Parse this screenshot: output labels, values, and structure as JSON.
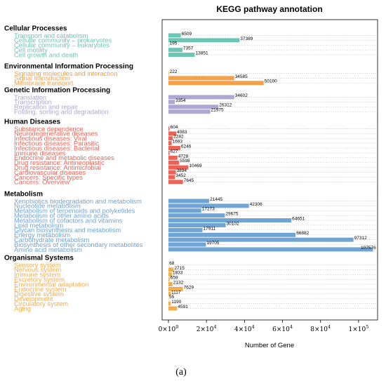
{
  "chart_data": {
    "type": "bar",
    "orientation": "horizontal",
    "title": "KEGG pathway annotation",
    "xlabel": "Number of Gene",
    "ylabel": "",
    "xlim": [
      0,
      110000
    ],
    "x_ticks": [
      {
        "value": 0,
        "mant": "0",
        "exp": "0"
      },
      {
        "value": 20000,
        "mant": "2",
        "exp": "4"
      },
      {
        "value": 40000,
        "mant": "4",
        "exp": "4"
      },
      {
        "value": 60000,
        "mant": "6",
        "exp": "4"
      },
      {
        "value": 80000,
        "mant": "8",
        "exp": "4"
      },
      {
        "value": 100000,
        "mant": "1",
        "exp": "5"
      }
    ],
    "grid": "dotted horizontal",
    "panel_label": "(a)",
    "groups": [
      {
        "name": "Cellular Processes",
        "color": "#6cc6b3",
        "items": [
          {
            "label": "Transport and catabolism",
            "value": 6509
          },
          {
            "label": "Cellular community – prokaryotes",
            "value": 37389
          },
          {
            "label": "Cellular community – eukaryotes",
            "value": 195
          },
          {
            "label": "Cell motility",
            "value": 7357
          },
          {
            "label": "Cell growth and death",
            "value": 13851
          }
        ]
      },
      {
        "name": "Environmental Information Processing",
        "color": "#f5a047",
        "items": [
          {
            "label": "Signaling molecules and interaction",
            "value": 222
          },
          {
            "label": "Signal transduction",
            "value": 34585
          },
          {
            "label": "Membrane transport",
            "value": 50100
          }
        ]
      },
      {
        "name": "Genetic Information Processing",
        "color": "#ada7d4",
        "items": [
          {
            "label": "Translation",
            "value": 34602
          },
          {
            "label": "Transcription",
            "value": 3354
          },
          {
            "label": "Replication and repair",
            "value": 26312
          },
          {
            "label": "Folding, sorting and degradation",
            "value": 21975
          }
        ]
      },
      {
        "name": "Human Diseases",
        "color": "#ec6355",
        "items": [
          {
            "label": "Substance dependence",
            "value": 604
          },
          {
            "label": "Neurodegenerative diseases",
            "value": 4083
          },
          {
            "label": "Infectious diseases: Viral",
            "value": 2282
          },
          {
            "label": "Infectious diseases: Parasitic",
            "value": 1693
          },
          {
            "label": "Infectious diseases: Bacterial",
            "value": 6246
          },
          {
            "label": "Immune diseases",
            "value": 627
          },
          {
            "label": "Endocrine and metabolic diseases",
            "value": 4728
          },
          {
            "label": "Drug resistance: Antineoplastic",
            "value": 5598
          },
          {
            "label": "Drug resistance: Antimicrobial",
            "value": 10469
          },
          {
            "label": "Cardiovascular diseases",
            "value": 3894
          },
          {
            "label": "Cancers: Specific types",
            "value": 3452
          },
          {
            "label": "Cancers: Overview",
            "value": 7645
          }
        ]
      },
      {
        "name": "Metabolism",
        "color": "#6fa4d4",
        "items": [
          {
            "label": "Xenobiotics biodegradation and metabolism",
            "value": 21445
          },
          {
            "label": "Nucleotide metabolism",
            "value": 42306
          },
          {
            "label": "Metabolism of terpenoids and polyketides",
            "value": 17273
          },
          {
            "label": "Metabolism of other amino acids",
            "value": 29675
          },
          {
            "label": "Metabolism of cofactors and vitamins",
            "value": 64651
          },
          {
            "label": "Lipid metabolism",
            "value": 30102
          },
          {
            "label": "Glycan biosynthesis and metabolism",
            "value": 17911
          },
          {
            "label": "Energy metabolism",
            "value": 66882
          },
          {
            "label": "Carbohydrate metabolism",
            "value": 97312
          },
          {
            "label": "Biosynthesis of other secondary metabolites",
            "value": 19705
          },
          {
            "label": "Amino acid metabolism",
            "value": 107576
          }
        ]
      },
      {
        "name": "Organismal Systems",
        "color": "#f4ad4c",
        "items": [
          {
            "label": "Sensory system",
            "value": 68
          },
          {
            "label": "Nervous system",
            "value": 2715
          },
          {
            "label": "Immune system",
            "value": 1833
          },
          {
            "label": "Excretory system",
            "value": 659
          },
          {
            "label": "Environmental adaptation",
            "value": 2132
          },
          {
            "label": "Endocrine system",
            "value": 7629
          },
          {
            "label": "Digestive system",
            "value": 1117
          },
          {
            "label": "Development",
            "value": 55
          },
          {
            "label": "Circulatory system",
            "value": 1190
          },
          {
            "label": "Aging",
            "value": 4591
          }
        ]
      }
    ]
  }
}
